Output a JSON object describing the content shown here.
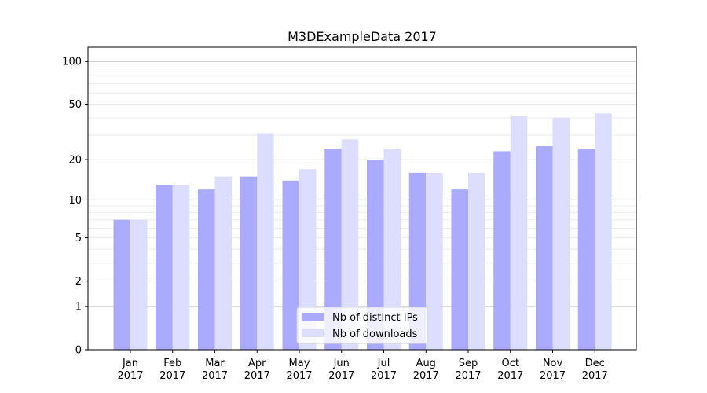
{
  "chart_data": {
    "type": "bar",
    "title": "M3DExampleData 2017",
    "xlabel": "",
    "ylabel": "",
    "yscale": "symlog",
    "ylim": [
      0,
      120
    ],
    "yticks": [
      0,
      1,
      2,
      5,
      10,
      20,
      50,
      100
    ],
    "grid": true,
    "legend_position": "lower center",
    "categories": [
      "Jan\n2017",
      "Feb\n2017",
      "Mar\n2017",
      "Apr\n2017",
      "May\n2017",
      "Jun\n2017",
      "Jul\n2017",
      "Aug\n2017",
      "Sep\n2017",
      "Oct\n2017",
      "Nov\n2017",
      "Dec\n2017"
    ],
    "series": [
      {
        "name": "Nb of distinct IPs",
        "color": "#aaaaff",
        "values": [
          7,
          13,
          12,
          15,
          14,
          24,
          20,
          16,
          12,
          23,
          25,
          24
        ]
      },
      {
        "name": "Nb of downloads",
        "color": "#ddddff",
        "values": [
          7,
          13,
          15,
          31,
          17,
          28,
          24,
          16,
          16,
          41,
          40,
          43
        ]
      }
    ]
  }
}
